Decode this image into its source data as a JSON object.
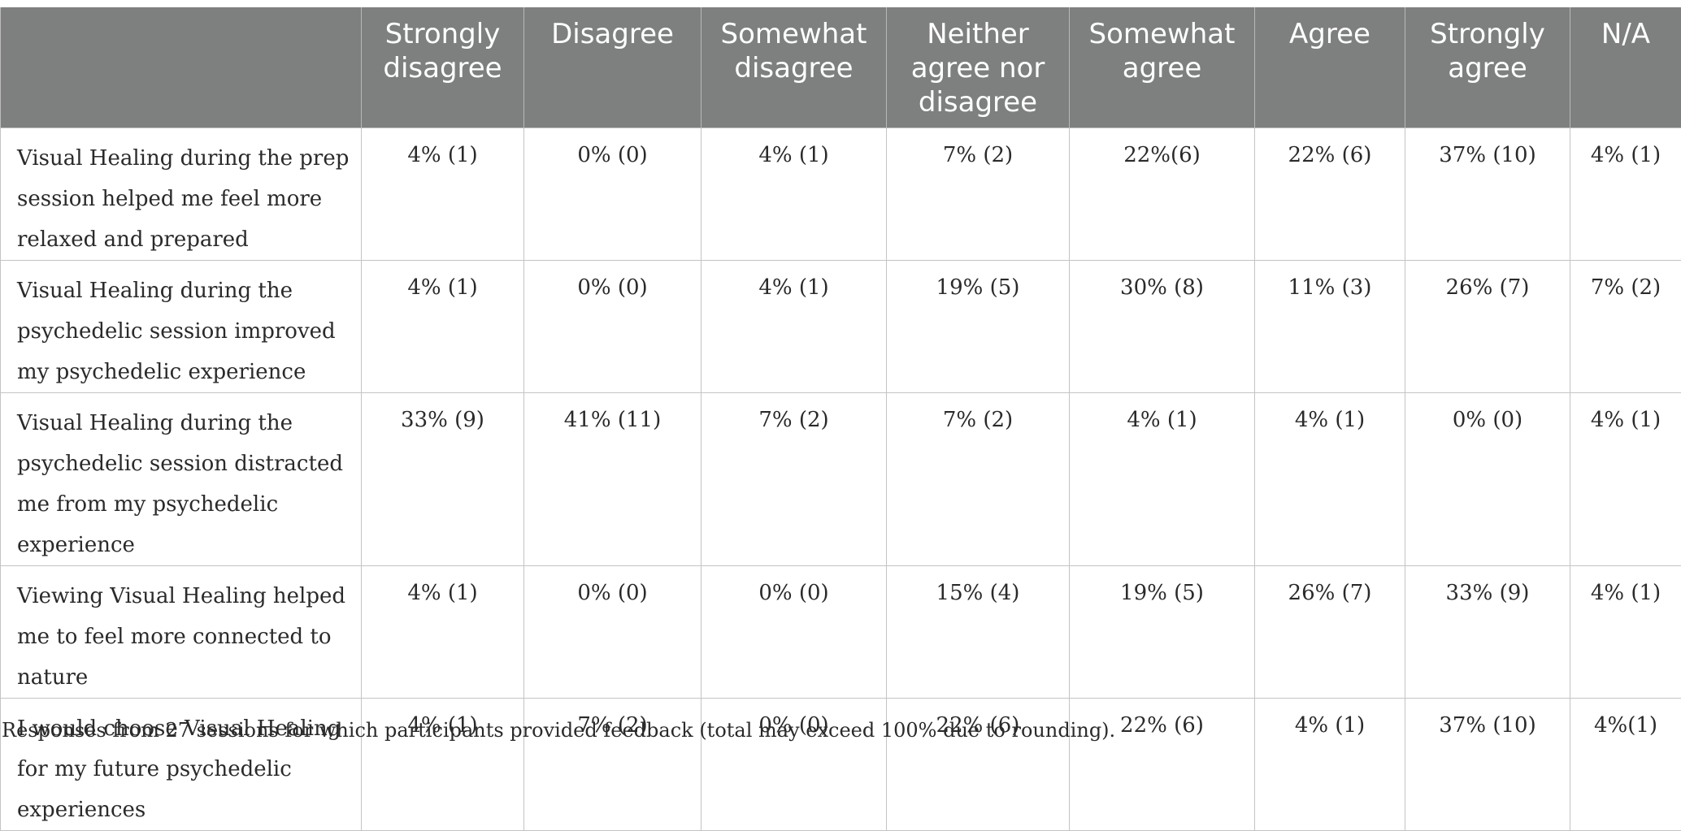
{
  "table": {
    "columns": [
      "",
      "Strongly disagree",
      "Disagree",
      "Somewhat disagree",
      "Neither agree nor disagree",
      "Somewhat agree",
      "Agree",
      "Strongly agree",
      "N/A"
    ],
    "rows": [
      {
        "label": "Visual Healing during the prep session helped me feel more relaxed and prepared",
        "values": [
          "4% (1)",
          "0% (0)",
          "4% (1)",
          "7% (2)",
          "22%(6)",
          "22% (6)",
          "37% (10)",
          "4% (1)"
        ]
      },
      {
        "label": "Visual Healing during the psychedelic session improved my psychedelic experience",
        "values": [
          "4% (1)",
          "0% (0)",
          "4% (1)",
          "19% (5)",
          "30% (8)",
          "11% (3)",
          "26% (7)",
          "7% (2)"
        ]
      },
      {
        "label": "Visual Healing during the psychedelic session distracted me from my psychedelic experience",
        "values": [
          "33% (9)",
          "41% (11)",
          "7% (2)",
          "7% (2)",
          "4% (1)",
          "4% (1)",
          "0% (0)",
          "4% (1)"
        ]
      },
      {
        "label": "Viewing Visual Healing helped me to feel more connected to nature",
        "values": [
          "4% (1)",
          "0% (0)",
          "0% (0)",
          "15% (4)",
          "19% (5)",
          "26% (7)",
          "33% (9)",
          "4% (1)"
        ]
      },
      {
        "label": "I would choose Visual Healing for my future psychedelic experiences",
        "values": [
          "4% (1)",
          "7% (2)",
          "0% (0)",
          "22% (6)",
          "22% (6)",
          "4% (1)",
          "37% (10)",
          "4%(1)"
        ]
      }
    ]
  },
  "footnote": "Responses from 27 sessions for which participants provided feedback (total may exceed 100% due to rounding)."
}
